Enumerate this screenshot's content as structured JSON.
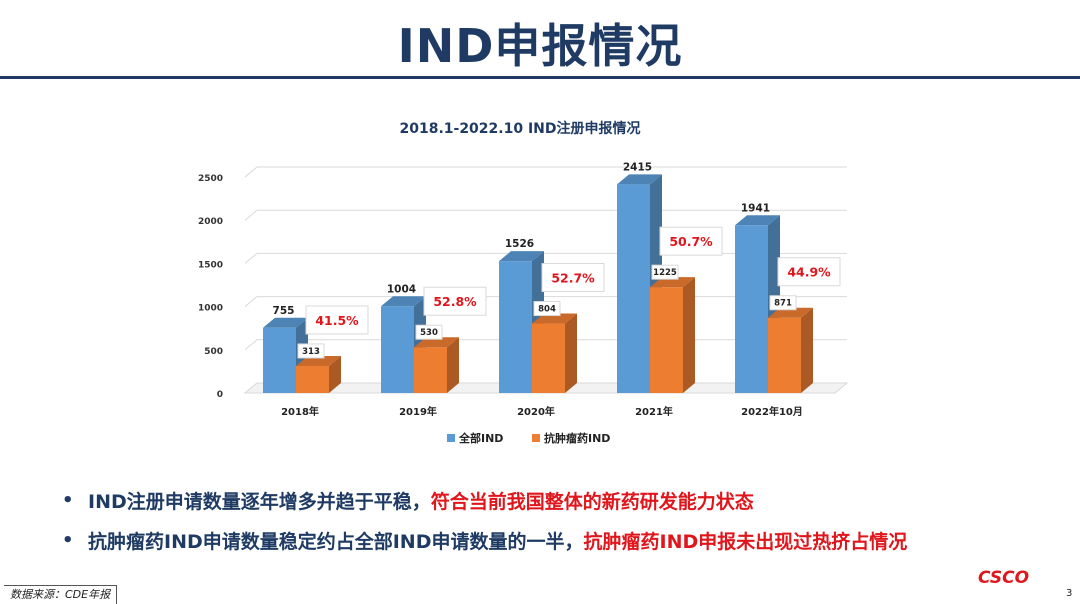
{
  "page": {
    "title": "IND申报情况",
    "bullets": [
      {
        "main": "IND注册申请数量逐年增多并趋于平稳，",
        "highlight": "符合当前我国整体的新药研发能力状态"
      },
      {
        "main": "抗肿瘤药IND申请数量稳定约占全部IND申请数量的一半，",
        "highlight": "抗肿瘤药IND申报未出现过热挤占情况"
      }
    ],
    "source": "数据来源：CDE年报",
    "logo": "CSCO",
    "page_number": "3"
  },
  "chart_data": {
    "type": "bar",
    "title": "2018.1-2022.10 IND注册申报情况",
    "categories": [
      "2018年",
      "2019年",
      "2020年",
      "2021年",
      "2022年10月"
    ],
    "series": [
      {
        "name": "全部IND",
        "values": [
          755,
          1004,
          1526,
          2415,
          1941
        ],
        "color": "#5b9bd5"
      },
      {
        "name": "抗肿瘤药IND",
        "values": [
          313,
          530,
          804,
          1225,
          871
        ],
        "color": "#ed7d31"
      }
    ],
    "ratio_labels": [
      "41.5%",
      "52.8%",
      "52.7%",
      "50.7%",
      "44.9%"
    ],
    "y_ticks": [
      0,
      500,
      1000,
      1500,
      2000,
      2500
    ],
    "ylim": [
      0,
      2500
    ],
    "legend_position": "bottom",
    "grid": true
  }
}
